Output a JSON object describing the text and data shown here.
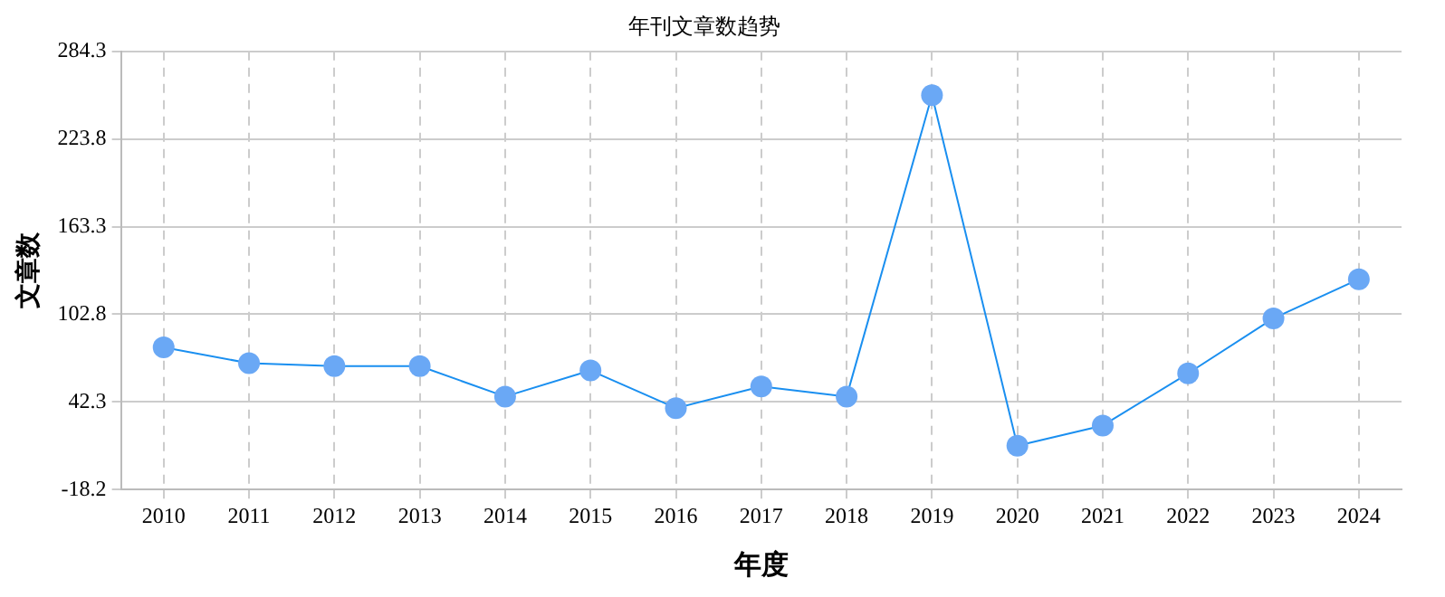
{
  "chart_data": {
    "type": "line",
    "title": "年刊文章数趋势",
    "xlabel": "年度",
    "ylabel": "文章数",
    "categories": [
      "2010",
      "2011",
      "2012",
      "2013",
      "2014",
      "2015",
      "2016",
      "2017",
      "2018",
      "2019",
      "2020",
      "2021",
      "2022",
      "2023",
      "2024"
    ],
    "series": [
      {
        "color": "#1a8ff0",
        "values": [
          80,
          69,
          67,
          67,
          46,
          64,
          38,
          53,
          46,
          254,
          12,
          26,
          62,
          100,
          127
        ]
      }
    ],
    "ylim": [
      -18.2,
      284.3
    ],
    "yticks": [
      -18.2,
      42.3,
      102.8,
      163.3,
      223.8,
      284.3
    ],
    "grid": true,
    "legend": false,
    "marker": "circle",
    "line_style": "solid"
  }
}
